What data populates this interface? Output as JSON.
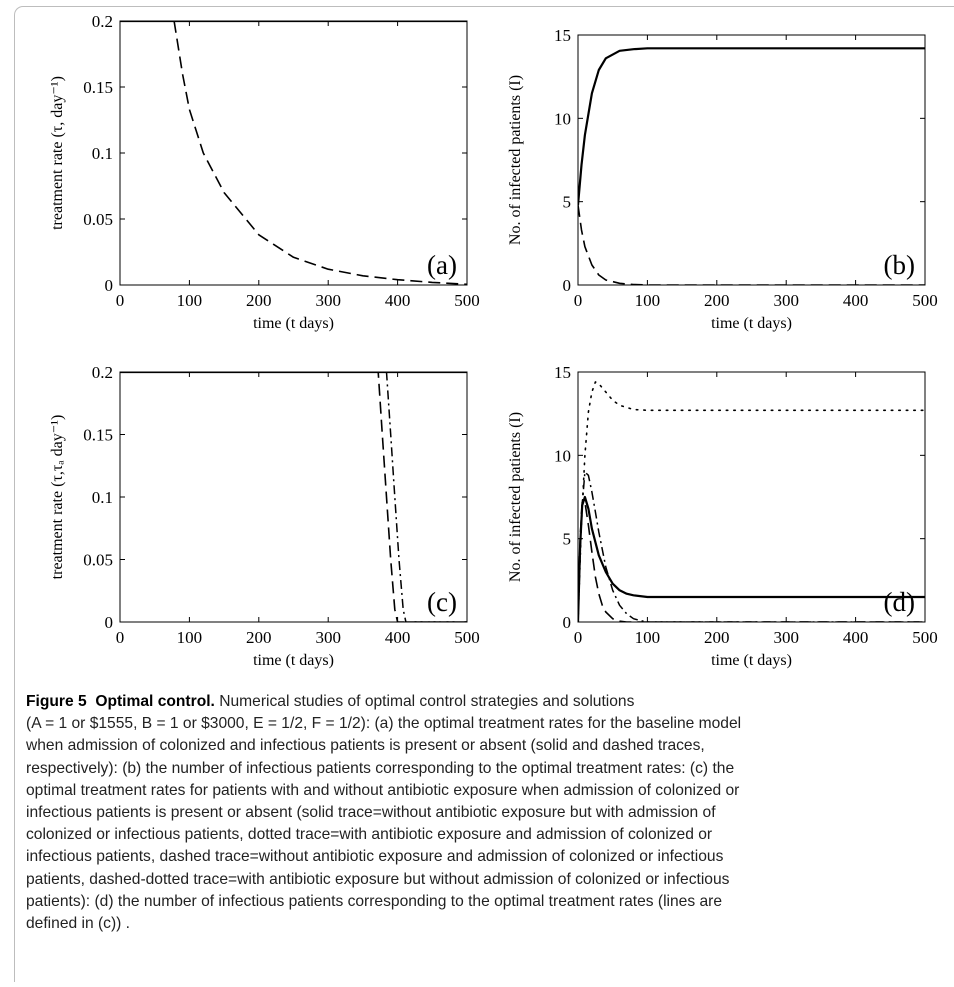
{
  "chart_data": [
    {
      "type": "line",
      "panel_label": "(a)",
      "xlabel": "time (t days)",
      "ylabel": "treatment rate (τ, day⁻¹)",
      "xlim": [
        0,
        500
      ],
      "ylim": [
        0,
        0.2
      ],
      "xticks": [
        0,
        100,
        200,
        300,
        400,
        500
      ],
      "xtick_labels": [
        "0",
        "100",
        "200",
        "300",
        "400",
        "500"
      ],
      "yticks": [
        0,
        0.05,
        0.1,
        0.15,
        0.2
      ],
      "ytick_labels": [
        "0",
        "0.05",
        "0.1",
        "0.15",
        "0.2"
      ],
      "series": [
        {
          "style": "solid",
          "x": [
            0,
            500
          ],
          "y": [
            0.2,
            0.2
          ]
        },
        {
          "style": "dashed",
          "x": [
            0,
            78,
            90,
            100,
            120,
            150,
            200,
            250,
            300,
            350,
            400,
            450,
            500
          ],
          "y": [
            0.2,
            0.2,
            0.16,
            0.133,
            0.1,
            0.07,
            0.038,
            0.021,
            0.012,
            0.007,
            0.004,
            0.002,
            0.0005
          ]
        }
      ]
    },
    {
      "type": "line",
      "panel_label": "(b)",
      "xlabel": "time (t days)",
      "ylabel": "No. of infected patients (I)",
      "xlim": [
        0,
        500
      ],
      "ylim": [
        0,
        15
      ],
      "xticks": [
        0,
        100,
        200,
        300,
        400,
        500
      ],
      "xtick_labels": [
        "0",
        "100",
        "200",
        "300",
        "400",
        "500"
      ],
      "yticks": [
        0,
        5,
        10,
        15
      ],
      "ytick_labels": [
        "0",
        "5",
        "10",
        "15"
      ],
      "series": [
        {
          "style": "solid",
          "x": [
            0,
            5,
            10,
            20,
            30,
            40,
            60,
            80,
            100,
            500
          ],
          "y": [
            4.8,
            7.2,
            9.0,
            11.5,
            12.9,
            13.6,
            14.05,
            14.15,
            14.2,
            14.2
          ]
        },
        {
          "style": "dashed",
          "x": [
            0,
            5,
            10,
            20,
            30,
            40,
            60,
            80,
            100,
            500
          ],
          "y": [
            4.8,
            3.3,
            2.3,
            1.2,
            0.6,
            0.3,
            0.1,
            0.03,
            0.0,
            0.0
          ]
        }
      ]
    },
    {
      "type": "line",
      "panel_label": "(c)",
      "xlabel": "time (t days)",
      "ylabel": "treatment rate (τ,τₐ day⁻¹)",
      "xlim": [
        0,
        500
      ],
      "ylim": [
        0,
        0.2
      ],
      "xticks": [
        0,
        100,
        200,
        300,
        400,
        500
      ],
      "xtick_labels": [
        "0",
        "100",
        "200",
        "300",
        "400",
        "500"
      ],
      "yticks": [
        0,
        0.05,
        0.1,
        0.15,
        0.2
      ],
      "ytick_labels": [
        "0",
        "0.05",
        "0.1",
        "0.15",
        "0.2"
      ],
      "series": [
        {
          "style": "solid",
          "x": [
            0,
            500
          ],
          "y": [
            0.2,
            0.2
          ]
        },
        {
          "style": "dotted",
          "x": [
            0,
            500
          ],
          "y": [
            0.2,
            0.2
          ]
        },
        {
          "style": "dashed",
          "x": [
            0,
            372,
            378,
            384,
            390,
            396,
            400,
            500
          ],
          "y": [
            0.2,
            0.2,
            0.15,
            0.1,
            0.05,
            0.01,
            0.0,
            0.0
          ]
        },
        {
          "style": "dashdot",
          "x": [
            0,
            384,
            390,
            396,
            402,
            408,
            412,
            500
          ],
          "y": [
            0.2,
            0.2,
            0.15,
            0.1,
            0.05,
            0.01,
            0.0,
            0.0
          ]
        }
      ]
    },
    {
      "type": "line",
      "panel_label": "(d)",
      "xlabel": "time (t days)",
      "ylabel": "No. of infected patients (I)",
      "xlim": [
        0,
        500
      ],
      "ylim": [
        0,
        15
      ],
      "xticks": [
        0,
        100,
        200,
        300,
        400,
        500
      ],
      "xtick_labels": [
        "0",
        "100",
        "200",
        "300",
        "400",
        "500"
      ],
      "yticks": [
        0,
        5,
        10,
        15
      ],
      "ytick_labels": [
        "0",
        "5",
        "10",
        "15"
      ],
      "series": [
        {
          "style": "solid",
          "x": [
            0,
            3,
            6,
            10,
            15,
            20,
            30,
            40,
            50,
            60,
            70,
            80,
            100,
            150,
            500
          ],
          "y": [
            0,
            4.5,
            7.0,
            7.5,
            6.8,
            5.6,
            4.0,
            3.0,
            2.3,
            1.9,
            1.7,
            1.6,
            1.5,
            1.5,
            1.5
          ]
        },
        {
          "style": "dotted",
          "x": [
            0,
            5,
            10,
            15,
            20,
            25,
            30,
            40,
            50,
            60,
            80,
            100,
            150,
            500
          ],
          "y": [
            0,
            6.0,
            10.0,
            12.6,
            13.8,
            14.4,
            14.3,
            13.8,
            13.3,
            13.0,
            12.75,
            12.7,
            12.7,
            12.7
          ]
        },
        {
          "style": "dashed",
          "x": [
            0,
            3,
            6,
            10,
            15,
            20,
            25,
            30,
            35,
            40,
            50,
            60,
            70,
            500
          ],
          "y": [
            0,
            5.0,
            7.2,
            7.2,
            5.8,
            4.2,
            2.7,
            1.7,
            1.0,
            0.6,
            0.2,
            0.05,
            0.0,
            0.0
          ]
        },
        {
          "style": "dashdot",
          "x": [
            0,
            5,
            10,
            15,
            20,
            25,
            30,
            40,
            50,
            60,
            70,
            80,
            90,
            100,
            500
          ],
          "y": [
            0,
            6.5,
            9.0,
            8.8,
            7.8,
            6.6,
            5.4,
            3.3,
            1.9,
            1.0,
            0.5,
            0.2,
            0.08,
            0.0,
            0.0
          ]
        }
      ]
    }
  ],
  "caption": {
    "label": "Figure 5",
    "title": "Optimal control.",
    "lines": [
      "Numerical studies of optimal control strategies and solutions",
      "(A = 1 or $1555, B = 1 or $3000, E = 1/2, F = 1/2): (a) the optimal treatment rates for the baseline model",
      "when admission of colonized and infectious patients is present or absent (solid and dashed traces,",
      "respectively): (b) the number of infectious patients corresponding to the optimal treatment rates: (c) the",
      "optimal treatment rates for patients with and without antibiotic exposure when admission of colonized or",
      "infectious patients is present or absent (solid trace=without antibiotic exposure but with admission of",
      "colonized or infectious patients, dotted trace=with antibiotic exposure and admission of colonized or",
      "infectious patients, dashed trace=without antibiotic exposure and admission of colonized or infectious",
      "patients, dashed-dotted trace=with antibiotic exposure but without admission of colonized or infectious",
      "patients): (d) the number of infectious patients corresponding to the optimal treatment rates (lines are",
      "defined in (c)) ."
    ]
  }
}
